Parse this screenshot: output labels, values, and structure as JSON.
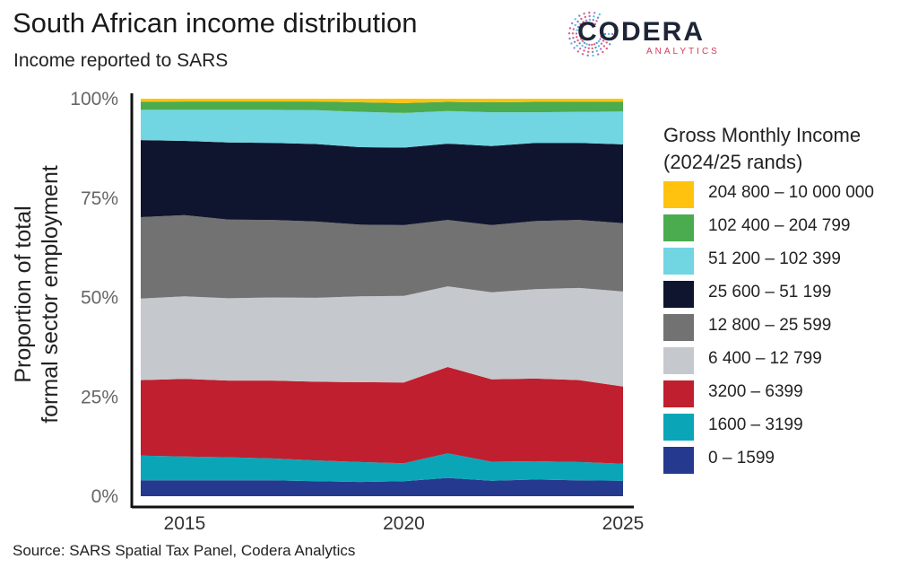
{
  "title": "South African income distribution",
  "subtitle": "Income reported to SARS",
  "source": "Source: SARS Spatial Tax Panel, Codera Analytics",
  "logo": {
    "word": "CODERA",
    "sub": "ANALYTICS"
  },
  "legend_title": [
    "Gross Monthly Income",
    "(2024/25 rands)"
  ],
  "chart_data": {
    "type": "area",
    "stacked": "percent",
    "x": [
      2014,
      2015,
      2016,
      2017,
      2018,
      2019,
      2020,
      2021,
      2022,
      2023,
      2024,
      2025
    ],
    "xticks": [
      2015,
      2020,
      2025
    ],
    "xlim": [
      2014,
      2025
    ],
    "ylim": [
      0,
      100
    ],
    "yticks": [
      0,
      25,
      50,
      75,
      100
    ],
    "ytick_labels": [
      "0%",
      "25%",
      "50%",
      "75%",
      "100%"
    ],
    "ylabel_lines": [
      "Proportion of total",
      "formal sector employment"
    ],
    "xlabel": "",
    "legend_position": "right",
    "series": [
      {
        "name": "0 – 1599",
        "color": "#253a8e",
        "values": [
          4.0,
          4.0,
          4.0,
          4.0,
          3.8,
          3.6,
          3.8,
          4.6,
          3.9,
          4.2,
          4.0,
          3.9
        ]
      },
      {
        "name": "1600 – 3199",
        "color": "#0aa6b8",
        "values": [
          6.2,
          6.0,
          5.8,
          5.5,
          5.2,
          5.0,
          4.5,
          6.2,
          4.8,
          4.6,
          4.6,
          4.3
        ]
      },
      {
        "name": "3200 – 6399",
        "color": "#bf1f2e",
        "values": [
          19.0,
          19.5,
          19.3,
          19.6,
          19.8,
          20.1,
          20.3,
          21.7,
          20.7,
          20.8,
          20.6,
          19.4
        ]
      },
      {
        "name": "6 400 – 12 799",
        "color": "#c5c8cd",
        "values": [
          20.5,
          20.8,
          20.7,
          20.9,
          21.1,
          21.6,
          21.8,
          20.3,
          21.9,
          22.5,
          23.2,
          23.9
        ]
      },
      {
        "name": "12 800 – 25 599",
        "color": "#727272",
        "values": [
          20.5,
          20.4,
          19.8,
          19.5,
          19.2,
          18.0,
          17.8,
          16.7,
          16.9,
          17.1,
          17.1,
          17.2
        ]
      },
      {
        "name": "25 600 – 51 199",
        "color": "#10152f",
        "values": [
          19.4,
          18.7,
          19.4,
          19.4,
          19.5,
          19.5,
          19.5,
          19.2,
          19.9,
          19.7,
          19.4,
          19.8
        ]
      },
      {
        "name": "51 200 – 102 399",
        "color": "#72d5e2",
        "values": [
          7.6,
          7.8,
          8.2,
          8.3,
          8.5,
          8.9,
          8.7,
          8.2,
          8.5,
          7.7,
          7.8,
          8.3
        ]
      },
      {
        "name": "102 400 – 204 799",
        "color": "#4aac4e",
        "values": [
          2.0,
          2.1,
          2.1,
          2.1,
          2.2,
          2.4,
          2.5,
          2.3,
          2.5,
          2.6,
          2.5,
          2.4
        ]
      },
      {
        "name": "204 800 – 10 000 000",
        "color": "#ffc20e",
        "values": [
          0.8,
          0.7,
          0.7,
          0.7,
          0.7,
          0.9,
          1.1,
          0.8,
          0.9,
          0.8,
          0.8,
          0.8
        ]
      }
    ]
  }
}
